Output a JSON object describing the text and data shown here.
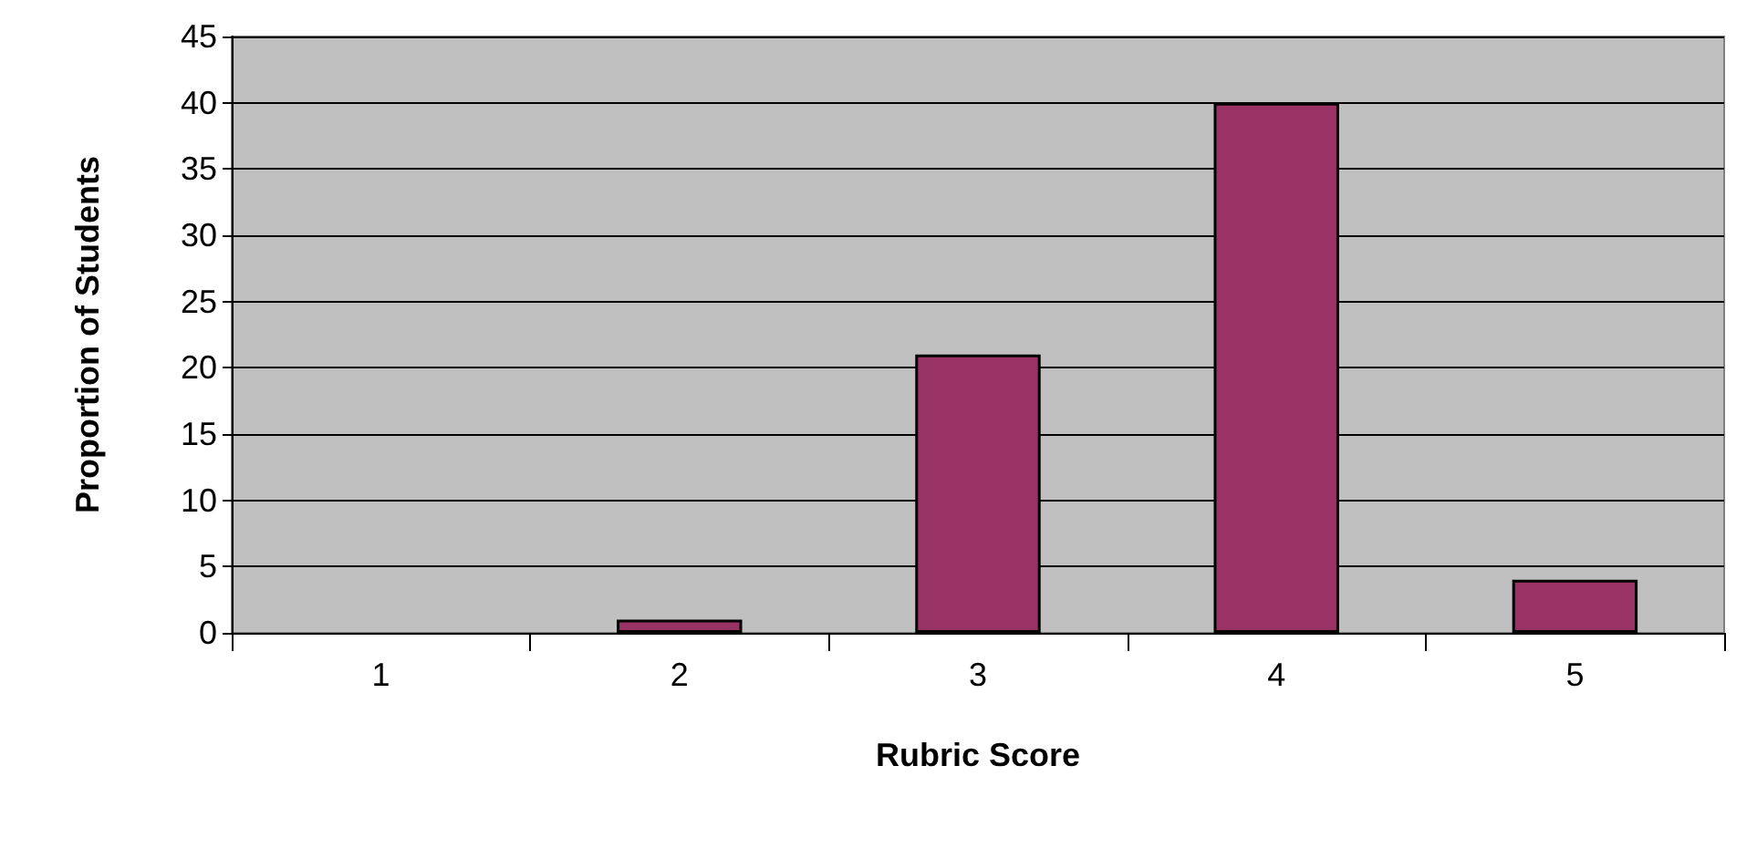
{
  "chart_data": {
    "type": "bar",
    "xlabel": "Rubric Score",
    "ylabel": "Proportion of Students",
    "categories": [
      "1",
      "2",
      "3",
      "4",
      "5"
    ],
    "values": [
      0,
      1,
      21,
      40,
      4
    ],
    "color": "#993366",
    "ylim": [
      0,
      45
    ],
    "yticks": [
      0,
      5,
      10,
      15,
      20,
      25,
      30,
      35,
      40,
      45
    ],
    "grid": "y"
  }
}
